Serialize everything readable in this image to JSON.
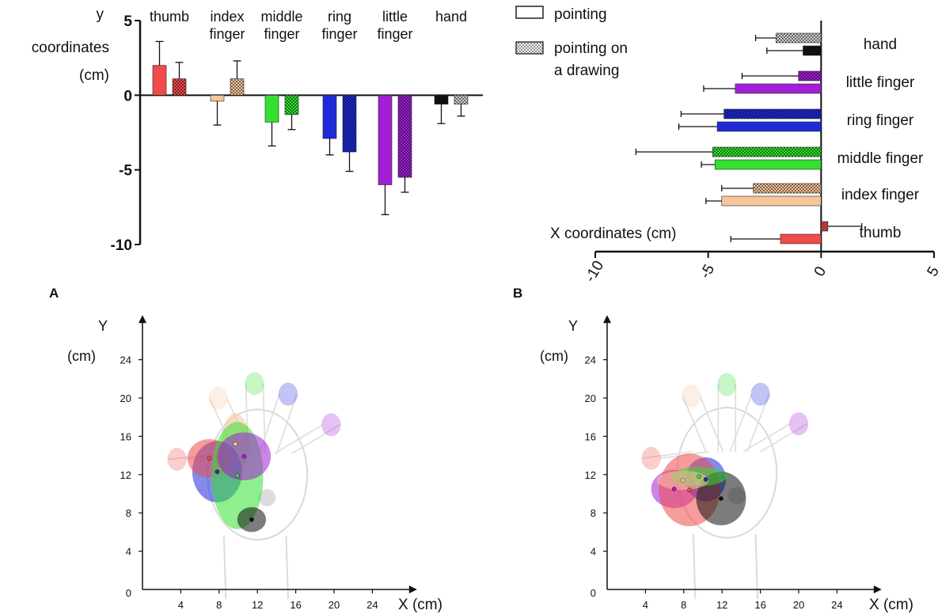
{
  "colors": {
    "thumb": "#f04a4a",
    "index finger": "#f7c59a",
    "middle finger": "#33e02f",
    "ring finger": "#1f2bd8",
    "little finger": "#a21fd6",
    "hand": "#111111",
    "hand_pattern": "#cfcfcf"
  },
  "legend": {
    "pointing": "pointing",
    "pointing_drawing": "pointing on a drawing"
  },
  "panel_labels": {
    "a": "A",
    "b": "B"
  },
  "chart_data": [
    {
      "id": "panel-a-top",
      "type": "bar",
      "ylabel": "y coordinates (cm)",
      "ylim": [
        -10,
        5
      ],
      "yticks": [
        5,
        0,
        -5,
        -10
      ],
      "categories": [
        "thumb",
        "index finger",
        "middle finger",
        "ring finger",
        "little finger",
        "hand"
      ],
      "series": [
        {
          "name": "pointing",
          "values": [
            2.0,
            -0.4,
            -1.8,
            -2.9,
            -6.0,
            -0.6
          ],
          "errors": [
            1.6,
            1.6,
            1.6,
            1.1,
            2.0,
            1.3
          ]
        },
        {
          "name": "pointing on a drawing",
          "values": [
            1.1,
            1.1,
            -1.3,
            -3.8,
            -5.5,
            -0.6
          ],
          "errors": [
            1.1,
            1.2,
            1.0,
            1.3,
            1.0,
            0.8
          ]
        }
      ]
    },
    {
      "id": "panel-b-top",
      "type": "bar",
      "orientation": "horizontal",
      "xlabel": "X coordinates (cm)",
      "xlim": [
        -10,
        5
      ],
      "xticks": [
        -10,
        -5,
        0,
        5
      ],
      "categories": [
        "hand",
        "little finger",
        "ring finger",
        "middle finger",
        "index finger",
        "thumb"
      ],
      "series": [
        {
          "name": "pointing",
          "values": [
            -0.8,
            -3.8,
            -4.6,
            -4.7,
            -4.4,
            -1.8
          ],
          "errors": [
            1.6,
            1.4,
            1.7,
            0.6,
            0.7,
            2.2
          ]
        },
        {
          "name": "pointing on a drawing",
          "values": [
            -2.0,
            -1.0,
            -4.3,
            -4.8,
            -3.0,
            0.3
          ],
          "errors": [
            0.9,
            2.5,
            1.9,
            3.4,
            1.4,
            1.5
          ]
        }
      ]
    },
    {
      "id": "panel-a-bottom",
      "type": "scatter",
      "xlabel": "X (cm)",
      "ylabel": "Y (cm)",
      "xlim": [
        0,
        28
      ],
      "ylim": [
        0,
        28
      ],
      "xticks": [
        4,
        8,
        12,
        16,
        20,
        24
      ],
      "yticks": [
        4,
        8,
        12,
        16,
        20,
        24
      ],
      "origin_label": "0",
      "hand_outline": {
        "targets": [
          {
            "name": "thumb",
            "x": 3.6,
            "y": 13.6
          },
          {
            "name": "index finger",
            "x": 7.9,
            "y": 20.0
          },
          {
            "name": "middle finger",
            "x": 11.7,
            "y": 21.5
          },
          {
            "name": "ring finger",
            "x": 15.2,
            "y": 20.4
          },
          {
            "name": "little finger",
            "x": 19.7,
            "y": 17.2
          },
          {
            "name": "hand",
            "x": 12.0,
            "y": 9.6
          }
        ]
      },
      "points": [
        {
          "name": "index finger",
          "x": 9.7,
          "y": 15.2,
          "sx": 1.5,
          "sy": 3.2
        },
        {
          "name": "ring finger",
          "x": 7.8,
          "y": 12.3,
          "sx": 2.6,
          "sy": 3.2
        },
        {
          "name": "thumb",
          "x": 7.0,
          "y": 13.7,
          "sx": 2.3,
          "sy": 2.0
        },
        {
          "name": "middle finger",
          "x": 9.9,
          "y": 11.9,
          "sx": 2.7,
          "sy": 5.6
        },
        {
          "name": "little finger",
          "x": 10.6,
          "y": 13.9,
          "sx": 2.8,
          "sy": 2.5
        },
        {
          "name": "hand",
          "x": 11.4,
          "y": 7.3,
          "sx": 1.5,
          "sy": 1.3
        }
      ]
    },
    {
      "id": "panel-b-bottom",
      "type": "scatter",
      "xlabel": "X (cm)",
      "ylabel": "Y (cm)",
      "xlim": [
        0,
        28
      ],
      "ylim": [
        0,
        28
      ],
      "xticks": [
        4,
        8,
        12,
        16,
        20,
        24
      ],
      "yticks": [
        4,
        8,
        12,
        16,
        20,
        24
      ],
      "origin_label": "0",
      "hand_outline": {
        "targets": [
          {
            "name": "thumb",
            "x": 4.6,
            "y": 13.7
          },
          {
            "name": "index finger",
            "x": 8.8,
            "y": 20.2
          },
          {
            "name": "middle finger",
            "x": 12.5,
            "y": 21.4
          },
          {
            "name": "ring finger",
            "x": 16.0,
            "y": 20.4
          },
          {
            "name": "little finger",
            "x": 20.0,
            "y": 17.3
          },
          {
            "name": "hand",
            "x": 12.5,
            "y": 9.8
          }
        ]
      },
      "points": [
        {
          "name": "little finger",
          "x": 7.0,
          "y": 10.5,
          "sx": 2.4,
          "sy": 2.0
        },
        {
          "name": "ring finger",
          "x": 10.3,
          "y": 11.5,
          "sx": 2.1,
          "sy": 2.3
        },
        {
          "name": "thumb",
          "x": 8.6,
          "y": 10.4,
          "sx": 3.2,
          "sy": 3.8
        },
        {
          "name": "hand",
          "x": 11.9,
          "y": 9.5,
          "sx": 2.6,
          "sy": 2.8
        },
        {
          "name": "middle finger",
          "x": 9.6,
          "y": 11.8,
          "sx": 2.9,
          "sy": 1.0
        },
        {
          "name": "index finger",
          "x": 7.9,
          "y": 11.4,
          "sx": 2.7,
          "sy": 1.0
        }
      ]
    }
  ]
}
